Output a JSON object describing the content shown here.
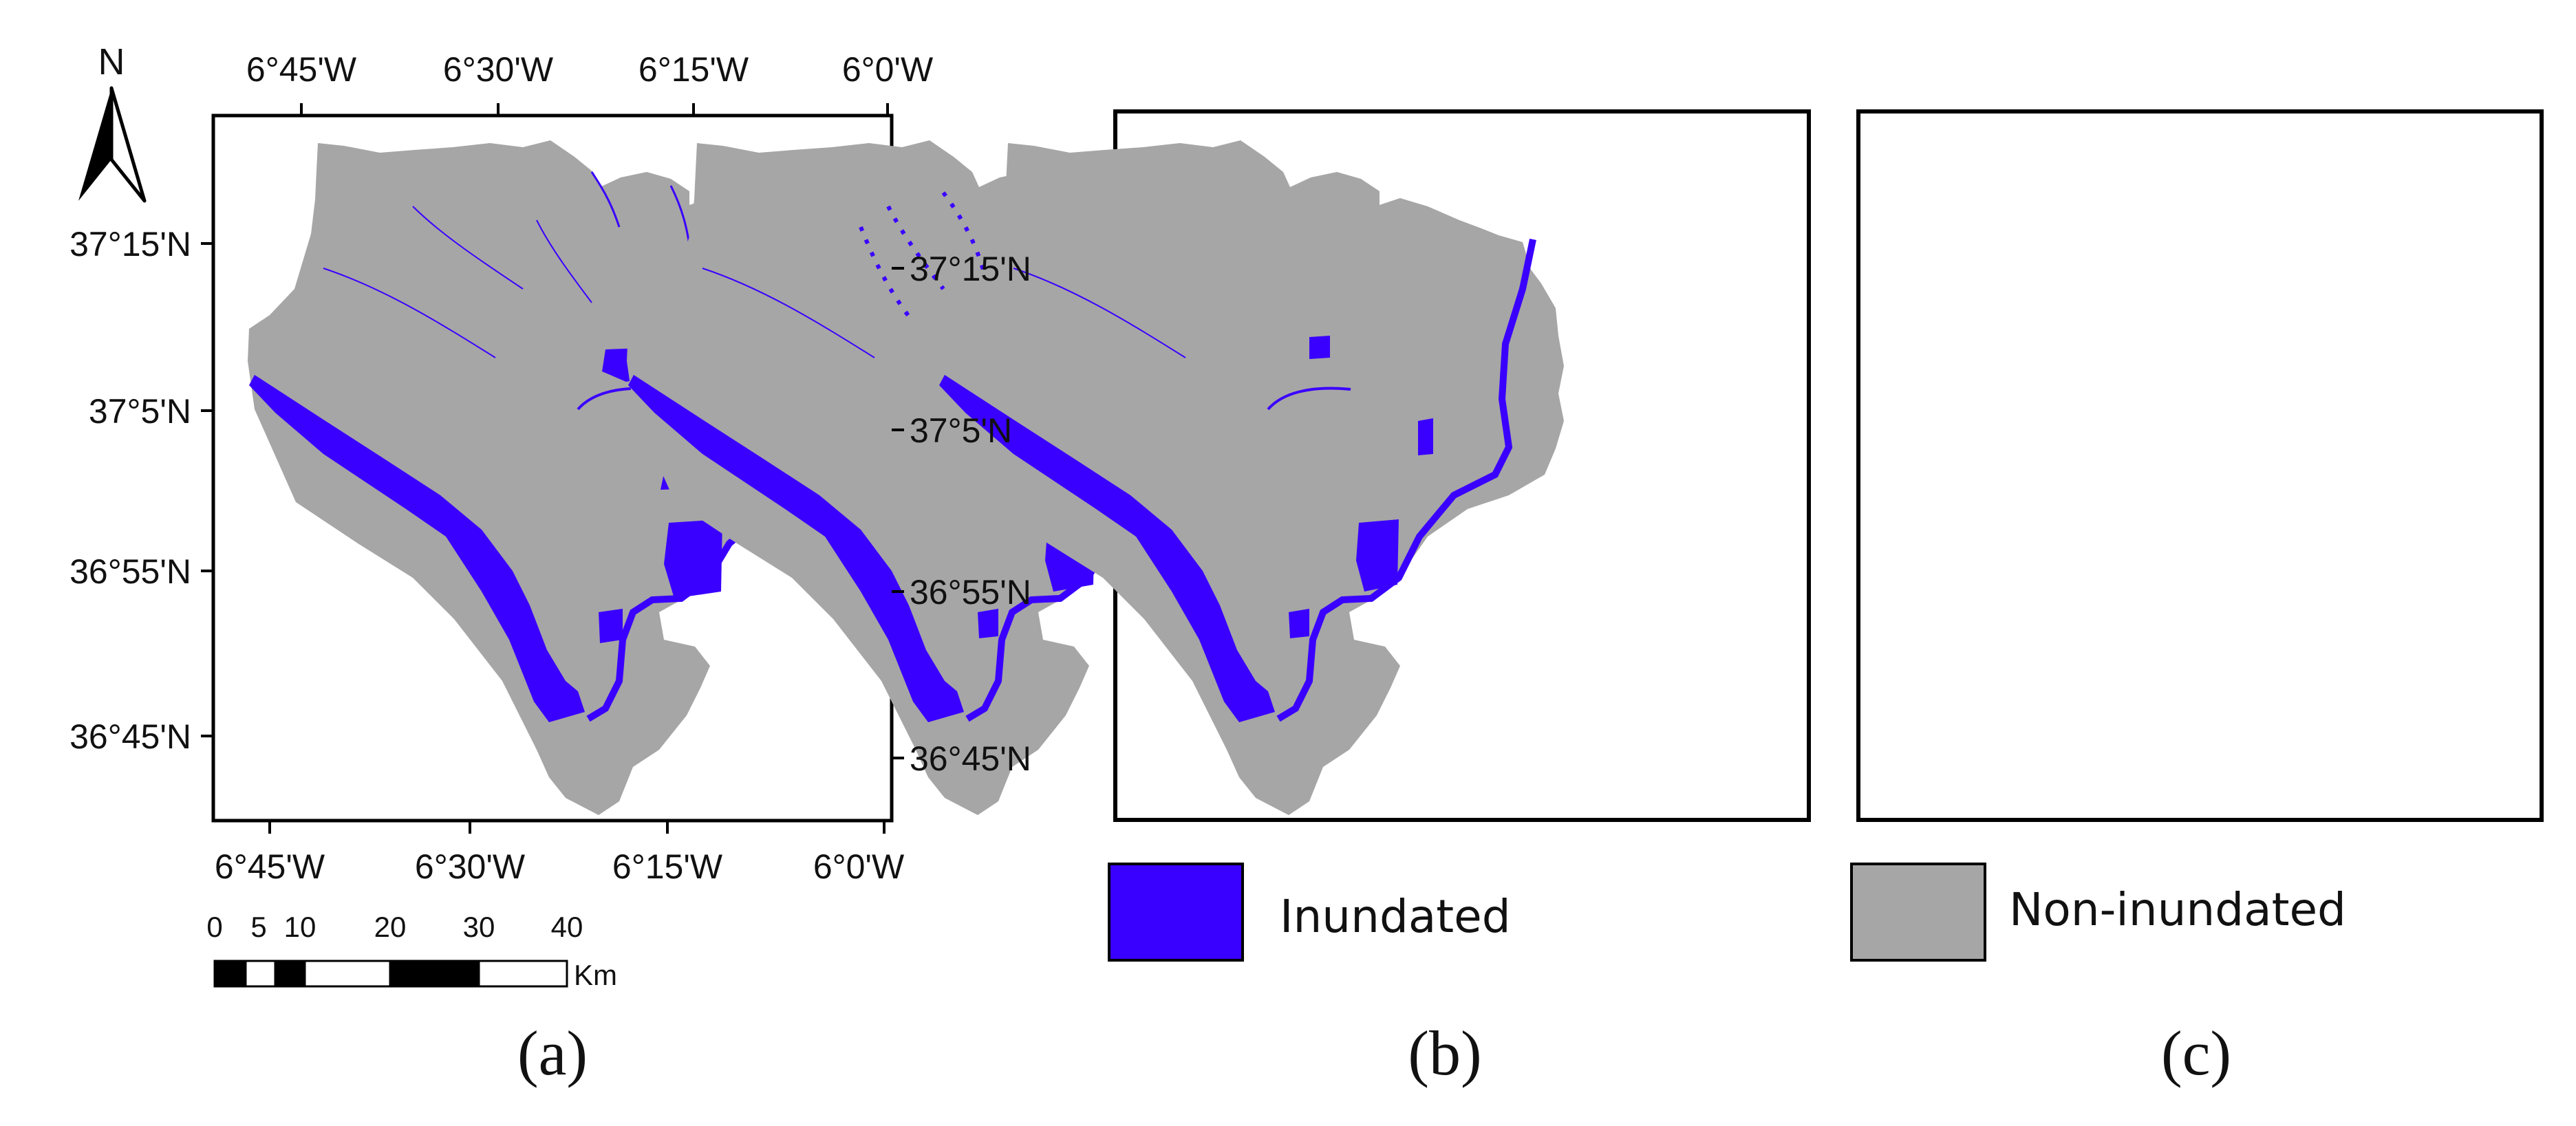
{
  "colors": {
    "inundated": "#3a00ff",
    "non_inundated": "#a6a6a6",
    "frame": "#000000"
  },
  "north_arrow": {
    "label": "N",
    "icon": "north-arrow-icon"
  },
  "panels": [
    {
      "label": "(a)",
      "scenario": "a"
    },
    {
      "label": "(b)",
      "scenario": "b"
    },
    {
      "label": "(c)",
      "scenario": "c"
    }
  ],
  "axes": {
    "top_longitudes": [
      "6°45'W",
      "6°30'W",
      "6°15'W",
      "6°0'W"
    ],
    "bottom_longitudes": [
      "6°45'W",
      "6°30'W",
      "6°15'W",
      "6°0'W"
    ],
    "left_latitudes": [
      "37°15'N",
      "37°5'N",
      "36°55'N",
      "36°45'N"
    ],
    "right_latitudes": [
      "37°15'N",
      "37°5'N",
      "36°55'N",
      "36°45'N"
    ]
  },
  "scale_bar": {
    "ticks": [
      "0",
      "5",
      "10",
      "20",
      "30",
      "40"
    ],
    "unit": "Km"
  },
  "legend": [
    {
      "label": "Inundated",
      "color": "#3a00ff"
    },
    {
      "label": "Non-inundated",
      "color": "#a6a6a6"
    }
  ]
}
